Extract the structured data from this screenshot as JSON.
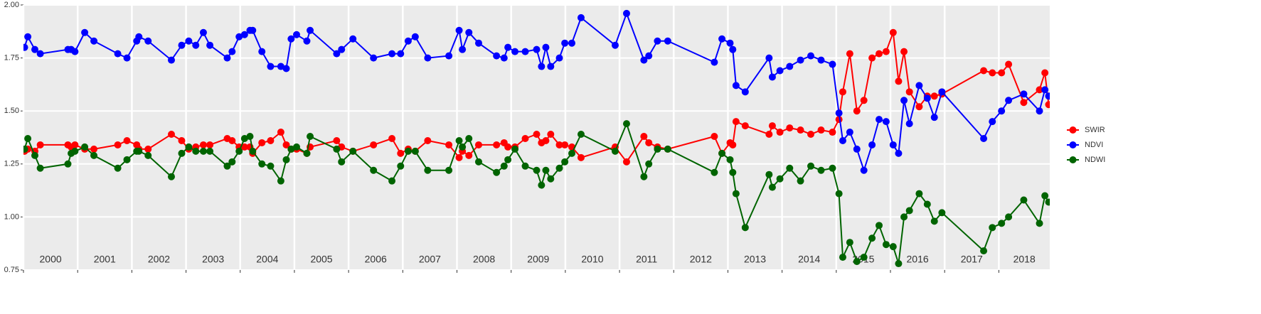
{
  "chart_data": {
    "type": "line",
    "x": [
      2000.02,
      2000.08,
      2000.21,
      2000.31,
      2000.82,
      2000.88,
      2000.95,
      2001.13,
      2001.3,
      2001.74,
      2001.91,
      2002.09,
      2002.13,
      2002.3,
      2002.73,
      2002.92,
      2003.05,
      2003.18,
      2003.32,
      2003.44,
      2003.76,
      2003.85,
      2003.98,
      2004.08,
      2004.18,
      2004.23,
      2004.4,
      2004.56,
      2004.75,
      2004.85,
      2004.94,
      2005.04,
      2005.23,
      2005.29,
      2005.78,
      2005.87,
      2006.08,
      2006.46,
      2006.8,
      2006.96,
      2007.1,
      2007.23,
      2007.46,
      2007.85,
      2008.04,
      2008.1,
      2008.22,
      2008.4,
      2008.73,
      2008.87,
      2008.94,
      2009.07,
      2009.26,
      2009.47,
      2009.56,
      2009.64,
      2009.73,
      2009.89,
      2009.99,
      2010.12,
      2010.29,
      2010.92,
      2011.13,
      2011.45,
      2011.54,
      2011.7,
      2011.89,
      2012.75,
      2012.89,
      2013.04,
      2013.09,
      2013.15,
      2013.32,
      2013.76,
      2013.82,
      2013.96,
      2014.14,
      2014.34,
      2014.53,
      2014.72,
      2014.93,
      2015.05,
      2015.12,
      2015.25,
      2015.38,
      2015.51,
      2015.66,
      2015.79,
      2015.92,
      2016.05,
      2016.15,
      2016.25,
      2016.35,
      2016.53,
      2016.68,
      2016.81,
      2016.95,
      2017.72,
      2017.88,
      2018.05,
      2018.18,
      2018.46,
      2018.75,
      2018.85,
      2018.92
    ],
    "series": [
      {
        "name": "SWIR",
        "color": "#ff0000",
        "values": [
          1.31,
          1.32,
          1.31,
          1.34,
          1.34,
          1.33,
          1.34,
          1.32,
          1.32,
          1.34,
          1.36,
          1.34,
          1.32,
          1.32,
          1.39,
          1.36,
          1.32,
          1.33,
          1.34,
          1.34,
          1.37,
          1.36,
          1.33,
          1.33,
          1.33,
          1.3,
          1.35,
          1.36,
          1.4,
          1.34,
          1.32,
          1.32,
          1.3,
          1.33,
          1.36,
          1.33,
          1.31,
          1.34,
          1.37,
          1.3,
          1.32,
          1.31,
          1.36,
          1.34,
          1.28,
          1.31,
          1.29,
          1.34,
          1.34,
          1.35,
          1.33,
          1.33,
          1.37,
          1.39,
          1.35,
          1.36,
          1.39,
          1.34,
          1.34,
          1.33,
          1.28,
          1.33,
          1.26,
          1.38,
          1.35,
          1.33,
          1.32,
          1.38,
          1.3,
          1.35,
          1.34,
          1.45,
          1.43,
          1.39,
          1.43,
          1.4,
          1.42,
          1.41,
          1.39,
          1.41,
          1.4,
          1.46,
          1.59,
          1.77,
          1.5,
          1.55,
          1.75,
          1.77,
          1.78,
          1.87,
          1.64,
          1.78,
          1.59,
          1.52,
          1.57,
          1.57,
          1.58,
          1.69,
          1.68,
          1.68,
          1.72,
          1.54,
          1.6,
          1.68,
          1.53
        ]
      },
      {
        "name": "NDVI",
        "color": "#0000ff",
        "values": [
          1.8,
          1.85,
          1.79,
          1.77,
          1.79,
          1.79,
          1.78,
          1.87,
          1.83,
          1.77,
          1.75,
          1.83,
          1.85,
          1.83,
          1.74,
          1.81,
          1.83,
          1.81,
          1.87,
          1.81,
          1.75,
          1.78,
          1.85,
          1.86,
          1.88,
          1.88,
          1.78,
          1.71,
          1.71,
          1.7,
          1.84,
          1.86,
          1.83,
          1.88,
          1.77,
          1.79,
          1.84,
          1.75,
          1.77,
          1.77,
          1.83,
          1.85,
          1.75,
          1.76,
          1.88,
          1.79,
          1.87,
          1.82,
          1.76,
          1.75,
          1.8,
          1.78,
          1.78,
          1.79,
          1.71,
          1.8,
          1.71,
          1.75,
          1.82,
          1.82,
          1.94,
          1.81,
          1.96,
          1.74,
          1.76,
          1.83,
          1.83,
          1.73,
          1.84,
          1.82,
          1.79,
          1.62,
          1.59,
          1.75,
          1.66,
          1.69,
          1.71,
          1.74,
          1.76,
          1.74,
          1.72,
          1.49,
          1.36,
          1.4,
          1.32,
          1.22,
          1.34,
          1.46,
          1.45,
          1.34,
          1.3,
          1.55,
          1.44,
          1.62,
          1.56,
          1.47,
          1.59,
          1.37,
          1.45,
          1.5,
          1.55,
          1.58,
          1.5,
          1.6,
          1.57
        ]
      },
      {
        "name": "NDWI",
        "color": "#006400",
        "values": [
          1.32,
          1.37,
          1.29,
          1.23,
          1.25,
          1.3,
          1.31,
          1.33,
          1.29,
          1.23,
          1.27,
          1.31,
          1.31,
          1.29,
          1.19,
          1.3,
          1.33,
          1.31,
          1.31,
          1.31,
          1.24,
          1.26,
          1.31,
          1.37,
          1.38,
          1.31,
          1.25,
          1.24,
          1.17,
          1.27,
          1.32,
          1.33,
          1.3,
          1.38,
          1.32,
          1.26,
          1.31,
          1.22,
          1.17,
          1.24,
          1.31,
          1.31,
          1.22,
          1.22,
          1.36,
          1.33,
          1.37,
          1.26,
          1.21,
          1.24,
          1.27,
          1.32,
          1.24,
          1.22,
          1.15,
          1.22,
          1.18,
          1.23,
          1.26,
          1.3,
          1.39,
          1.31,
          1.44,
          1.19,
          1.25,
          1.32,
          1.32,
          1.21,
          1.3,
          1.27,
          1.21,
          1.11,
          0.95,
          1.2,
          1.14,
          1.18,
          1.23,
          1.17,
          1.24,
          1.22,
          1.23,
          1.11,
          0.81,
          0.88,
          0.79,
          0.81,
          0.9,
          0.96,
          0.87,
          0.86,
          0.78,
          1.0,
          1.03,
          1.11,
          1.06,
          0.98,
          1.02,
          0.84,
          0.95,
          0.97,
          1.0,
          1.08,
          0.97,
          1.1,
          1.07
        ]
      }
    ],
    "xlim": [
      2000,
      2018.94
    ],
    "xticks": [
      2000,
      2001,
      2002,
      2003,
      2004,
      2005,
      2006,
      2007,
      2008,
      2009,
      2010,
      2011,
      2012,
      2013,
      2014,
      2015,
      2016,
      2017,
      2018
    ],
    "year_labels": [
      "2000",
      "2001",
      "2002",
      "2003",
      "2004",
      "2005",
      "2006",
      "2007",
      "2008",
      "2009",
      "2010",
      "2011",
      "2012",
      "2013",
      "2014",
      "2015",
      "2016",
      "2017",
      "2018"
    ],
    "ylim": [
      0.75,
      2.0
    ],
    "yticks": [
      {
        "value": 0.75,
        "label": "0.75"
      },
      {
        "value": 1.0,
        "label": "1.00"
      },
      {
        "value": 1.25,
        "label": "1.25"
      },
      {
        "value": 1.5,
        "label": "1.50"
      },
      {
        "value": 1.75,
        "label": "1.75"
      },
      {
        "value": 2.0,
        "label": "2.00"
      }
    ],
    "grid": true,
    "legend": "right"
  }
}
